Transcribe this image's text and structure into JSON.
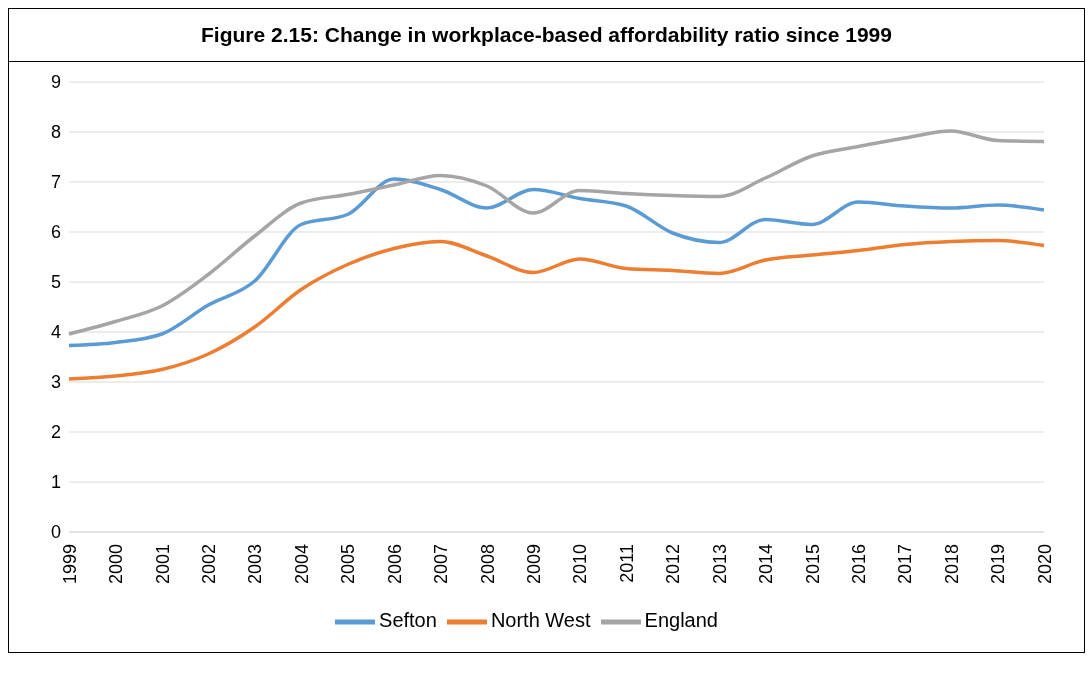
{
  "chart_data": {
    "type": "line",
    "title": "Figure 2.15: Change in workplace-based affordability ratio since 1999",
    "categories": [
      "1999",
      "2000",
      "2001",
      "2002",
      "2003",
      "2004",
      "2005",
      "2006",
      "2007",
      "2008",
      "2009",
      "2010",
      "2011",
      "2012",
      "2013",
      "2014",
      "2015",
      "2016",
      "2017",
      "2018",
      "2019",
      "2020"
    ],
    "series": [
      {
        "name": "Sefton",
        "color": "#5b9bd5",
        "values": [
          3.73,
          3.79,
          3.96,
          4.54,
          5.02,
          6.15,
          6.35,
          7.06,
          6.85,
          6.48,
          6.85,
          6.67,
          6.52,
          5.98,
          5.79,
          6.25,
          6.15,
          6.6,
          6.52,
          6.48,
          6.54,
          6.44
        ]
      },
      {
        "name": "North West",
        "color": "#ed7d31",
        "values": [
          3.06,
          3.12,
          3.25,
          3.56,
          4.1,
          4.85,
          5.35,
          5.67,
          5.81,
          5.52,
          5.19,
          5.46,
          5.27,
          5.23,
          5.17,
          5.44,
          5.54,
          5.63,
          5.75,
          5.81,
          5.83,
          5.73
        ]
      },
      {
        "name": "England",
        "color": "#a5a5a5",
        "values": [
          3.96,
          4.21,
          4.52,
          5.15,
          5.92,
          6.58,
          6.75,
          6.94,
          7.13,
          6.92,
          6.38,
          6.83,
          6.77,
          6.73,
          6.71,
          7.08,
          7.52,
          7.71,
          7.88,
          8.02,
          7.83,
          7.81
        ]
      }
    ],
    "ylim": [
      0,
      9
    ],
    "yticks": [
      0,
      1,
      2,
      3,
      4,
      5,
      6,
      7,
      8,
      9
    ],
    "grid": "y",
    "legend": "bottom",
    "marker": "none",
    "line_style": "solid"
  }
}
